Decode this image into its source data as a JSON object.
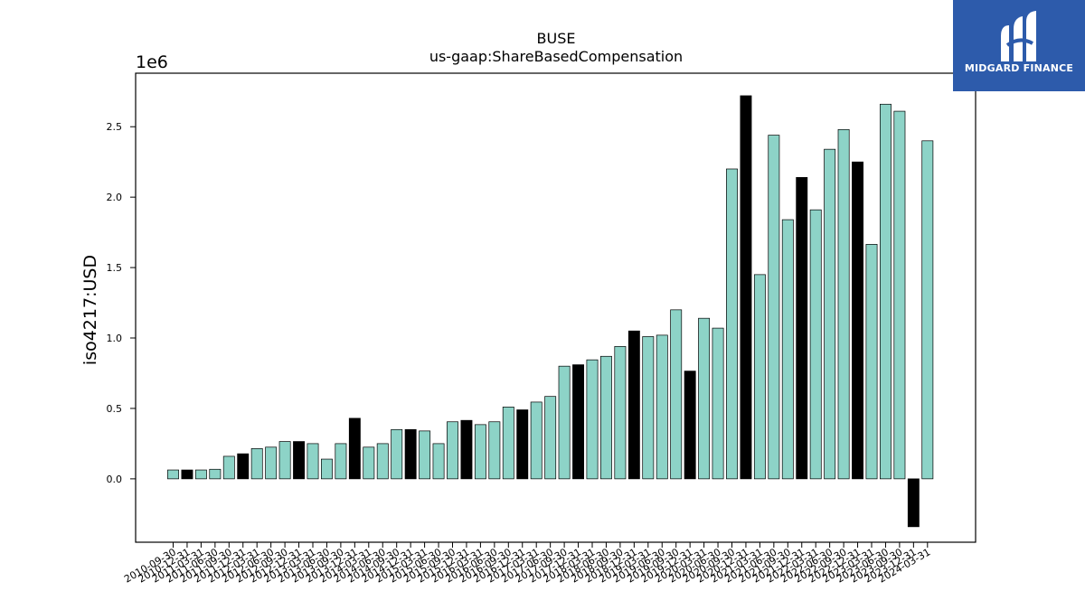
{
  "logo": {
    "text": "MIDGARD FINANCE",
    "background": "#2d5bab"
  },
  "chart_data": {
    "type": "bar",
    "title": "BUSE",
    "subtitle": "us-gaap:ShareBasedCompensation",
    "xlabel": "",
    "ylabel": "iso4217:USD",
    "y_scale_label": "1e6",
    "ylim": [
      -0.45,
      2.88
    ],
    "yticks": [
      0.0,
      0.5,
      1.0,
      1.5,
      2.0,
      2.5
    ],
    "ytick_labels": [
      "0.0",
      "0.5",
      "1.0",
      "1.5",
      "2.0",
      "2.5"
    ],
    "colors": {
      "default": "#8dd3c7",
      "highlight": "#000000"
    },
    "grid": false,
    "categories": [
      "2010-09-30",
      "2010-12-31",
      "2011-03-31",
      "2011-06-30",
      "2011-09-30",
      "2011-12-31",
      "2012-03-31",
      "2012-06-30",
      "2012-09-30",
      "2012-12-31",
      "2013-03-31",
      "2013-06-30",
      "2013-09-30",
      "2013-12-31",
      "2014-03-31",
      "2014-06-30",
      "2014-09-30",
      "2014-12-31",
      "2015-03-31",
      "2015-06-30",
      "2015-09-30",
      "2015-12-31",
      "2016-03-31",
      "2016-06-30",
      "2016-09-30",
      "2016-12-31",
      "2017-03-31",
      "2017-06-30",
      "2017-09-30",
      "2017-12-31",
      "2018-03-31",
      "2018-06-30",
      "2018-09-30",
      "2018-12-31",
      "2019-03-31",
      "2019-06-30",
      "2019-09-30",
      "2019-12-31",
      "2020-03-31",
      "2020-06-30",
      "2020-09-30",
      "2020-12-31",
      "2021-03-31",
      "2021-06-30",
      "2021-09-30",
      "2021-12-31",
      "2022-03-31",
      "2022-06-30",
      "2022-09-30",
      "2022-12-31",
      "2023-03-31",
      "2023-06-30",
      "2023-09-30",
      "2023-12-31",
      "2024-03-31"
    ],
    "series": [
      {
        "values": [
          0.063,
          0.063,
          0.063,
          0.068,
          0.16,
          0.178,
          0.215,
          0.225,
          0.265,
          0.265,
          0.25,
          0.14,
          0.25,
          0.43,
          0.225,
          0.25,
          0.35,
          0.35,
          0.34,
          0.25,
          0.405,
          0.415,
          0.385,
          0.405,
          0.51,
          0.49,
          0.545,
          0.585,
          0.8,
          0.81,
          0.845,
          0.87,
          0.94,
          1.05,
          1.01,
          1.02,
          1.2,
          0.765,
          1.14,
          1.07,
          2.2,
          2.72,
          1.45,
          2.44,
          1.84,
          2.14,
          1.91,
          2.34,
          2.48,
          2.25,
          1.665,
          2.66,
          2.61,
          -0.34,
          2.4
        ],
        "highlight": [
          false,
          true,
          false,
          false,
          false,
          true,
          false,
          false,
          false,
          true,
          false,
          false,
          false,
          true,
          false,
          false,
          false,
          true,
          false,
          false,
          false,
          true,
          false,
          false,
          false,
          true,
          false,
          false,
          false,
          true,
          false,
          false,
          false,
          true,
          false,
          false,
          false,
          true,
          false,
          false,
          false,
          true,
          false,
          false,
          false,
          true,
          false,
          false,
          false,
          true,
          false,
          false,
          false,
          true,
          false
        ]
      }
    ]
  }
}
